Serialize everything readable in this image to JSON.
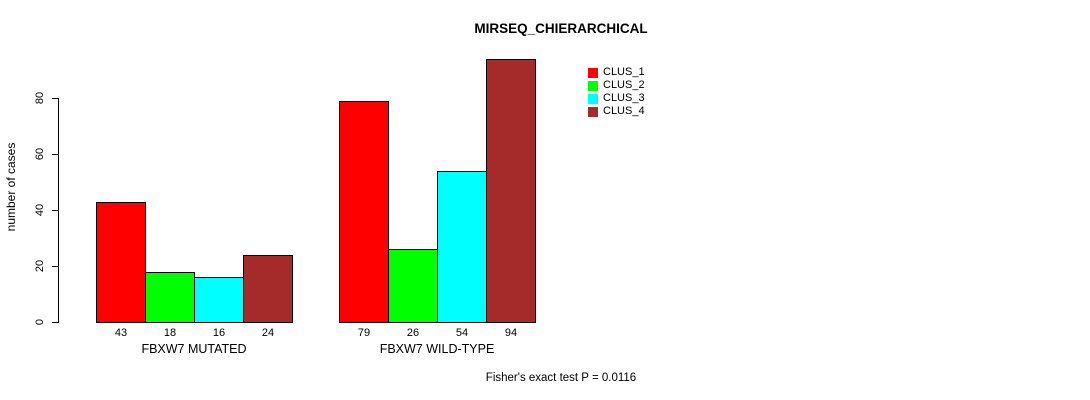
{
  "chart_data": {
    "type": "bar",
    "title": "MIRSEQ_CHIERARCHICAL",
    "ylabel": "number of cases",
    "xlabel": "",
    "categories": [
      "FBXW7 MUTATED",
      "FBXW7 WILD-TYPE"
    ],
    "series": [
      {
        "name": "CLUS_1",
        "color": "#FF0000",
        "values": [
          43,
          79
        ]
      },
      {
        "name": "CLUS_2",
        "color": "#00FF00",
        "values": [
          18,
          26
        ]
      },
      {
        "name": "CLUS_3",
        "color": "#00FFFF",
        "values": [
          16,
          54
        ]
      },
      {
        "name": "CLUS_4",
        "color": "#A52A2A",
        "values": [
          24,
          94
        ]
      }
    ],
    "bar_value_labels": [
      [
        "43",
        "18",
        "16",
        "24"
      ],
      [
        "79",
        "26",
        "54",
        "94"
      ]
    ],
    "yticks": [
      0,
      20,
      40,
      60,
      80
    ],
    "ylim": [
      0,
      94
    ],
    "grid": false,
    "legend_position": "top-right",
    "legend_labels": [
      "CLUS_1",
      "CLUS_2",
      "CLUS_3",
      "CLUS_4"
    ],
    "footnote": "Fisher's exact test P = 0.0116",
    "bar_border_color": "#000000",
    "text_color": "#000000",
    "background_color": "#ffffff"
  }
}
